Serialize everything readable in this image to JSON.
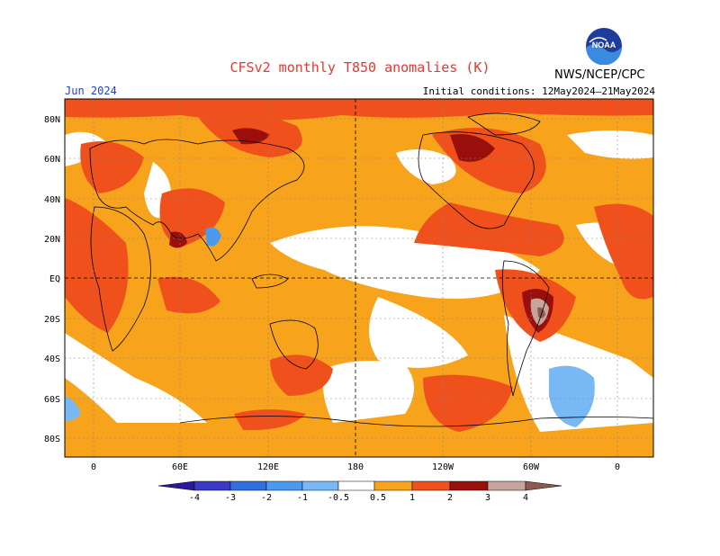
{
  "header": {
    "title": "CFSv2 monthly T850 anomalies (K)",
    "month": "Jun 2024",
    "initial_conditions": "Initial conditions: 12May2024–21May2024",
    "agency": "NWS/NCEP/CPC",
    "logo_text": "NOAA"
  },
  "map": {
    "lat_labels": [
      "80N",
      "60N",
      "40N",
      "20N",
      "EQ",
      "20S",
      "40S",
      "60S",
      "80S"
    ],
    "lon_labels": [
      "0",
      "60E",
      "120E",
      "180",
      "120W",
      "60W",
      "0"
    ]
  },
  "colorbar": {
    "labels": [
      "-4",
      "-3",
      "-2",
      "-1",
      "-0.5",
      "0.5",
      "1",
      "2",
      "3",
      "4"
    ],
    "colors": [
      "#2a1a9a",
      "#3a3ac8",
      "#2f6fe0",
      "#4a9af0",
      "#78b8f4",
      "#ffffff",
      "#f7a31c",
      "#f0501c",
      "#d21f10",
      "#9a0f0c",
      "#c8a59c",
      "#8c5a4e"
    ]
  }
}
